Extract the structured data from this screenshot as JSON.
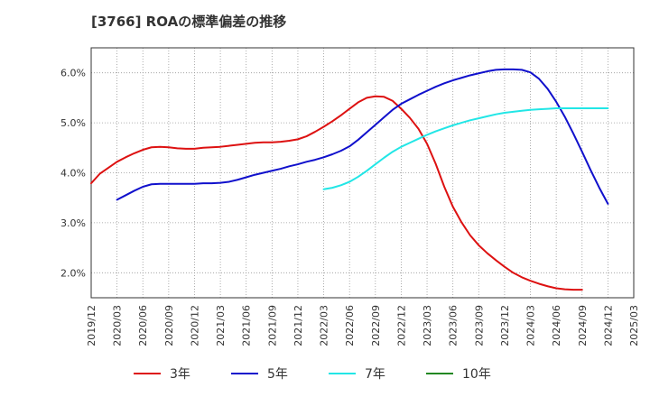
{
  "title": "[3766]  ROAの標準偏差の推移",
  "chart_data": {
    "type": "line",
    "title": "[3766]  ROAの標準偏差の推移",
    "xlabel": "",
    "ylabel": "",
    "x_ticks": [
      "2019/12",
      "2020/03",
      "2020/06",
      "2020/09",
      "2020/12",
      "2021/03",
      "2021/06",
      "2021/09",
      "2021/12",
      "2022/03",
      "2022/06",
      "2022/09",
      "2022/12",
      "2023/03",
      "2023/06",
      "2023/09",
      "2023/12",
      "2024/03",
      "2024/06",
      "2024/09",
      "2024/12",
      "2025/03"
    ],
    "y_ticks": [
      2.0,
      3.0,
      4.0,
      5.0,
      6.0
    ],
    "y_tick_labels": [
      "2.0%",
      "3.0%",
      "4.0%",
      "5.0%",
      "6.0%"
    ],
    "ylim": [
      1.5,
      6.5
    ],
    "grid": true,
    "legend_position": "bottom",
    "series": [
      {
        "name": "3年",
        "color": "#dd1111",
        "points": [
          [
            "2019/12",
            3.79
          ],
          [
            "2020/01",
            3.98
          ],
          [
            "2020/02",
            4.1
          ],
          [
            "2020/03",
            4.22
          ],
          [
            "2020/04",
            4.31
          ],
          [
            "2020/05",
            4.39
          ],
          [
            "2020/06",
            4.46
          ],
          [
            "2020/07",
            4.51
          ],
          [
            "2020/08",
            4.52
          ],
          [
            "2020/09",
            4.51
          ],
          [
            "2020/10",
            4.49
          ],
          [
            "2020/11",
            4.48
          ],
          [
            "2020/12",
            4.48
          ],
          [
            "2021/01",
            4.5
          ],
          [
            "2021/02",
            4.51
          ],
          [
            "2021/03",
            4.52
          ],
          [
            "2021/04",
            4.54
          ],
          [
            "2021/05",
            4.56
          ],
          [
            "2021/06",
            4.58
          ],
          [
            "2021/07",
            4.6
          ],
          [
            "2021/08",
            4.61
          ],
          [
            "2021/09",
            4.61
          ],
          [
            "2021/10",
            4.62
          ],
          [
            "2021/11",
            4.64
          ],
          [
            "2021/12",
            4.67
          ],
          [
            "2022/01",
            4.73
          ],
          [
            "2022/02",
            4.82
          ],
          [
            "2022/03",
            4.92
          ],
          [
            "2022/04",
            5.03
          ],
          [
            "2022/05",
            5.15
          ],
          [
            "2022/06",
            5.28
          ],
          [
            "2022/07",
            5.41
          ],
          [
            "2022/08",
            5.5
          ],
          [
            "2022/09",
            5.53
          ],
          [
            "2022/10",
            5.52
          ],
          [
            "2022/11",
            5.44
          ],
          [
            "2022/12",
            5.28
          ],
          [
            "2023/01",
            5.1
          ],
          [
            "2023/02",
            4.88
          ],
          [
            "2023/03",
            4.58
          ],
          [
            "2023/04",
            4.18
          ],
          [
            "2023/05",
            3.72
          ],
          [
            "2023/06",
            3.32
          ],
          [
            "2023/07",
            3.01
          ],
          [
            "2023/08",
            2.75
          ],
          [
            "2023/09",
            2.55
          ],
          [
            "2023/10",
            2.39
          ],
          [
            "2023/11",
            2.25
          ],
          [
            "2023/12",
            2.12
          ],
          [
            "2024/01",
            2.0
          ],
          [
            "2024/02",
            1.91
          ],
          [
            "2024/03",
            1.84
          ],
          [
            "2024/04",
            1.78
          ],
          [
            "2024/05",
            1.73
          ],
          [
            "2024/06",
            1.69
          ],
          [
            "2024/07",
            1.67
          ],
          [
            "2024/08",
            1.66
          ],
          [
            "2024/09",
            1.66
          ]
        ]
      },
      {
        "name": "5年",
        "color": "#1010cc",
        "points": [
          [
            "2020/03",
            3.46
          ],
          [
            "2020/04",
            3.55
          ],
          [
            "2020/05",
            3.64
          ],
          [
            "2020/06",
            3.72
          ],
          [
            "2020/07",
            3.77
          ],
          [
            "2020/08",
            3.78
          ],
          [
            "2020/09",
            3.78
          ],
          [
            "2020/10",
            3.78
          ],
          [
            "2020/11",
            3.78
          ],
          [
            "2020/12",
            3.78
          ],
          [
            "2021/01",
            3.79
          ],
          [
            "2021/02",
            3.79
          ],
          [
            "2021/03",
            3.8
          ],
          [
            "2021/04",
            3.82
          ],
          [
            "2021/05",
            3.86
          ],
          [
            "2021/06",
            3.91
          ],
          [
            "2021/07",
            3.96
          ],
          [
            "2021/08",
            4.0
          ],
          [
            "2021/09",
            4.04
          ],
          [
            "2021/10",
            4.08
          ],
          [
            "2021/11",
            4.13
          ],
          [
            "2021/12",
            4.17
          ],
          [
            "2022/01",
            4.22
          ],
          [
            "2022/02",
            4.26
          ],
          [
            "2022/03",
            4.31
          ],
          [
            "2022/04",
            4.37
          ],
          [
            "2022/05",
            4.44
          ],
          [
            "2022/06",
            4.53
          ],
          [
            "2022/07",
            4.66
          ],
          [
            "2022/08",
            4.81
          ],
          [
            "2022/09",
            4.96
          ],
          [
            "2022/10",
            5.11
          ],
          [
            "2022/11",
            5.26
          ],
          [
            "2022/12",
            5.38
          ],
          [
            "2023/01",
            5.47
          ],
          [
            "2023/02",
            5.56
          ],
          [
            "2023/03",
            5.64
          ],
          [
            "2023/04",
            5.72
          ],
          [
            "2023/05",
            5.79
          ],
          [
            "2023/06",
            5.85
          ],
          [
            "2023/07",
            5.9
          ],
          [
            "2023/08",
            5.95
          ],
          [
            "2023/09",
            5.99
          ],
          [
            "2023/10",
            6.03
          ],
          [
            "2023/11",
            6.06
          ],
          [
            "2023/12",
            6.07
          ],
          [
            "2024/01",
            6.07
          ],
          [
            "2024/02",
            6.06
          ],
          [
            "2024/03",
            6.01
          ],
          [
            "2024/04",
            5.88
          ],
          [
            "2024/05",
            5.68
          ],
          [
            "2024/06",
            5.42
          ],
          [
            "2024/07",
            5.12
          ],
          [
            "2024/08",
            4.78
          ],
          [
            "2024/09",
            4.42
          ],
          [
            "2024/10",
            4.05
          ],
          [
            "2024/11",
            3.7
          ],
          [
            "2024/12",
            3.38
          ]
        ]
      },
      {
        "name": "7年",
        "color": "#22e6e6",
        "points": [
          [
            "2022/03",
            3.67
          ],
          [
            "2022/04",
            3.7
          ],
          [
            "2022/05",
            3.75
          ],
          [
            "2022/06",
            3.82
          ],
          [
            "2022/07",
            3.92
          ],
          [
            "2022/08",
            4.04
          ],
          [
            "2022/09",
            4.17
          ],
          [
            "2022/10",
            4.3
          ],
          [
            "2022/11",
            4.42
          ],
          [
            "2022/12",
            4.52
          ],
          [
            "2023/01",
            4.6
          ],
          [
            "2023/02",
            4.68
          ],
          [
            "2023/03",
            4.76
          ],
          [
            "2023/04",
            4.83
          ],
          [
            "2023/05",
            4.89
          ],
          [
            "2023/06",
            4.95
          ],
          [
            "2023/07",
            5.0
          ],
          [
            "2023/08",
            5.05
          ],
          [
            "2023/09",
            5.09
          ],
          [
            "2023/10",
            5.13
          ],
          [
            "2023/11",
            5.17
          ],
          [
            "2023/12",
            5.2
          ],
          [
            "2024/01",
            5.22
          ],
          [
            "2024/02",
            5.24
          ],
          [
            "2024/03",
            5.26
          ],
          [
            "2024/04",
            5.27
          ],
          [
            "2024/05",
            5.28
          ],
          [
            "2024/06",
            5.29
          ],
          [
            "2024/07",
            5.29
          ],
          [
            "2024/08",
            5.29
          ],
          [
            "2024/09",
            5.29
          ],
          [
            "2024/10",
            5.29
          ],
          [
            "2024/11",
            5.29
          ],
          [
            "2024/12",
            5.29
          ]
        ]
      },
      {
        "name": "10年",
        "color": "#228822",
        "points": []
      }
    ]
  }
}
